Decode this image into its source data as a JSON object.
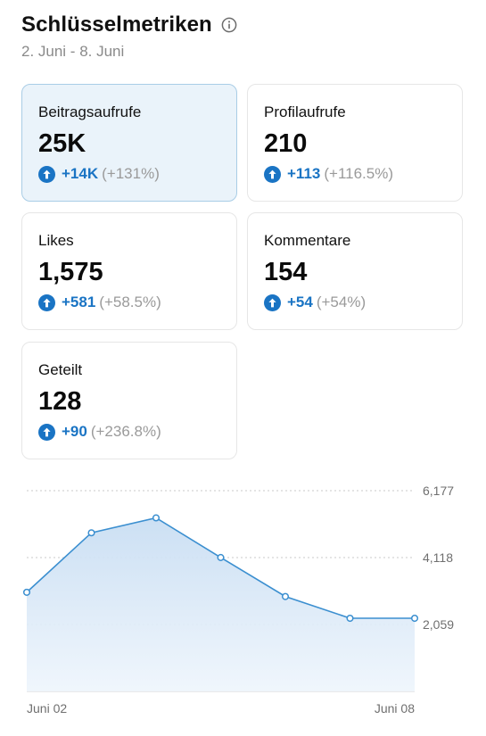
{
  "header": {
    "title": "Schlüsselmetriken",
    "date_range": "2. Juni - 8. Juni"
  },
  "icons": {
    "info": "info-circle-icon",
    "trend_up": "arrow-up-circle-icon"
  },
  "colors": {
    "accent": "#1a74c4",
    "selected_card_bg": "#eaf3fa",
    "selected_card_border": "#a9cde6",
    "muted_text": "#9a9a9a",
    "chart_line": "#3b8fd0",
    "chart_fill": "#cfe2f5"
  },
  "metrics": [
    {
      "label": "Beitragsaufrufe",
      "value": "25K",
      "delta": "+14K",
      "percent": "(+131%)",
      "selected": true
    },
    {
      "label": "Profilaufrufe",
      "value": "210",
      "delta": "+113",
      "percent": "(+116.5%)",
      "selected": false
    },
    {
      "label": "Likes",
      "value": "1,575",
      "delta": "+581",
      "percent": "(+58.5%)",
      "selected": false
    },
    {
      "label": "Kommentare",
      "value": "154",
      "delta": "+54",
      "percent": "(+54%)",
      "selected": false
    },
    {
      "label": "Geteilt",
      "value": "128",
      "delta": "+90",
      "percent": "(+236.8%)",
      "selected": false
    }
  ],
  "chart_data": {
    "type": "area",
    "x": [
      "2025-06-02",
      "2025-06-03",
      "2025-06-04",
      "2025-06-05",
      "2025-06-06",
      "2025-06-07",
      "2025-06-08"
    ],
    "x_tick_labels": [
      "Juni 02",
      "Juni 08"
    ],
    "y_tick_labels": [
      "6,177",
      "4,118",
      "2,059"
    ],
    "y_ticks": [
      6177,
      4118,
      2059
    ],
    "ylim": [
      0,
      6177
    ],
    "series": [
      {
        "values": [
          3050,
          4880,
          5340,
          4120,
          2920,
          2250,
          2250
        ]
      }
    ],
    "grid": true,
    "legend": "none"
  }
}
